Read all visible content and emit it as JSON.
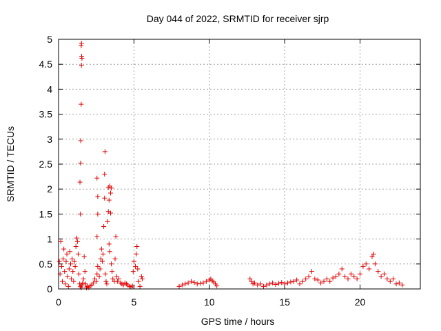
{
  "chart_data": {
    "type": "scatter",
    "title": "Day 044 of 2022, SRMTID for receiver sjrp",
    "xlabel": "GPS time / hours",
    "ylabel": "SRMTID / TECUs",
    "xlim": [
      0,
      24
    ],
    "ylim": [
      0,
      5
    ],
    "xticks": [
      0,
      5,
      10,
      15,
      20
    ],
    "xtick_labels": [
      "0",
      "5",
      "10",
      "15",
      "20"
    ],
    "yticks": [
      0,
      0.5,
      1,
      1.5,
      2,
      2.5,
      3,
      3.5,
      4,
      4.5,
      5
    ],
    "ytick_labels": [
      "0",
      "0.5",
      "1",
      "1.5",
      "2",
      "2.5",
      "3",
      "3.5",
      "4",
      "4.5",
      "5"
    ],
    "grid": true,
    "marker": "plus",
    "marker_color": "#e00000",
    "series": [
      {
        "name": "SRMTID",
        "points": [
          [
            0.05,
            0.55
          ],
          [
            0.1,
            0.3
          ],
          [
            0.15,
            0.95
          ],
          [
            0.2,
            0.45
          ],
          [
            0.25,
            0.15
          ],
          [
            0.3,
            0.6
          ],
          [
            0.35,
            0.8
          ],
          [
            0.4,
            0.35
          ],
          [
            0.45,
            0.1
          ],
          [
            0.5,
            0.55
          ],
          [
            0.55,
            0.7
          ],
          [
            0.6,
            0.25
          ],
          [
            0.65,
            0.05
          ],
          [
            0.7,
            0.4
          ],
          [
            0.75,
            0.75
          ],
          [
            0.8,
            0.5
          ],
          [
            0.85,
            0.2
          ],
          [
            0.9,
            0.6
          ],
          [
            0.95,
            0.35
          ],
          [
            1.0,
            0.15
          ],
          [
            1.05,
            0.55
          ],
          [
            1.1,
            0.45
          ],
          [
            1.15,
            0.85
          ],
          [
            1.2,
            1.02
          ],
          [
            1.25,
            0.95
          ],
          [
            1.3,
            0.7
          ],
          [
            1.35,
            0.3
          ],
          [
            1.4,
            0.1
          ],
          [
            1.45,
            0.05
          ],
          [
            1.5,
            0.02
          ],
          [
            1.55,
            0.08
          ],
          [
            1.6,
            0.12
          ],
          [
            1.65,
            0.2
          ],
          [
            1.7,
            0.65
          ],
          [
            1.75,
            0.35
          ],
          [
            1.8,
            0.1
          ],
          [
            1.45,
            1.5
          ],
          [
            1.42,
            2.14
          ],
          [
            1.46,
            2.52
          ],
          [
            1.47,
            2.97
          ],
          [
            1.5,
            3.7
          ],
          [
            1.52,
            4.48
          ],
          [
            1.55,
            4.62
          ],
          [
            1.53,
            4.66
          ],
          [
            1.5,
            4.87
          ],
          [
            1.52,
            4.92
          ],
          [
            1.85,
            0.02
          ],
          [
            1.9,
            0.05
          ],
          [
            2.0,
            0.03
          ],
          [
            2.1,
            0.06
          ],
          [
            2.2,
            0.08
          ],
          [
            2.3,
            0.12
          ],
          [
            2.4,
            0.2
          ],
          [
            2.5,
            0.15
          ],
          [
            2.55,
            0.3
          ],
          [
            2.6,
            0.45
          ],
          [
            2.55,
            1.05
          ],
          [
            2.6,
            1.5
          ],
          [
            2.6,
            1.85
          ],
          [
            2.55,
            2.22
          ],
          [
            2.7,
            0.25
          ],
          [
            2.75,
            0.4
          ],
          [
            2.8,
            0.6
          ],
          [
            2.85,
            0.8
          ],
          [
            2.9,
            0.55
          ],
          [
            2.95,
            0.7
          ],
          [
            3.0,
            1.25
          ],
          [
            3.05,
            1.82
          ],
          [
            3.05,
            2.3
          ],
          [
            3.08,
            2.75
          ],
          [
            3.1,
            0.3
          ],
          [
            3.15,
            0.15
          ],
          [
            3.2,
            0.1
          ],
          [
            3.25,
            1.35
          ],
          [
            3.3,
            1.55
          ],
          [
            3.35,
            1.78
          ],
          [
            3.3,
            2.03
          ],
          [
            3.4,
            2.06
          ],
          [
            3.45,
            1.92
          ],
          [
            3.5,
            2.02
          ],
          [
            3.45,
            1.52
          ],
          [
            3.35,
            0.9
          ],
          [
            3.4,
            0.75
          ],
          [
            3.5,
            0.5
          ],
          [
            3.55,
            0.35
          ],
          [
            3.6,
            0.2
          ],
          [
            3.7,
            0.15
          ],
          [
            3.75,
            0.6
          ],
          [
            3.8,
            1.05
          ],
          [
            3.85,
            0.25
          ],
          [
            3.9,
            0.15
          ],
          [
            4.0,
            0.2
          ],
          [
            4.1,
            0.12
          ],
          [
            4.2,
            0.1
          ],
          [
            4.3,
            0.08
          ],
          [
            4.4,
            0.12
          ],
          [
            4.5,
            0.1
          ],
          [
            4.6,
            0.08
          ],
          [
            4.7,
            0.05
          ],
          [
            4.8,
            0.04
          ],
          [
            4.9,
            0.06
          ],
          [
            4.95,
            0.35
          ],
          [
            5.0,
            0.55
          ],
          [
            5.1,
            0.45
          ],
          [
            5.15,
            0.7
          ],
          [
            5.2,
            0.85
          ],
          [
            5.25,
            0.4
          ],
          [
            5.3,
            0.15
          ],
          [
            5.4,
            0.05
          ],
          [
            5.5,
            0.25
          ],
          [
            5.55,
            0.2
          ],
          [
            8.0,
            0.05
          ],
          [
            8.2,
            0.08
          ],
          [
            8.4,
            0.1
          ],
          [
            8.6,
            0.12
          ],
          [
            8.8,
            0.15
          ],
          [
            9.0,
            0.13
          ],
          [
            9.2,
            0.1
          ],
          [
            9.4,
            0.11
          ],
          [
            9.6,
            0.12
          ],
          [
            9.8,
            0.15
          ],
          [
            10.0,
            0.18
          ],
          [
            10.1,
            0.2
          ],
          [
            10.2,
            0.16
          ],
          [
            10.3,
            0.14
          ],
          [
            10.4,
            0.1
          ],
          [
            10.5,
            0.06
          ],
          [
            12.7,
            0.2
          ],
          [
            12.8,
            0.15
          ],
          [
            12.9,
            0.1
          ],
          [
            13.0,
            0.12
          ],
          [
            13.2,
            0.08
          ],
          [
            13.4,
            0.1
          ],
          [
            13.6,
            0.05
          ],
          [
            13.8,
            0.08
          ],
          [
            14.0,
            0.1
          ],
          [
            14.2,
            0.12
          ],
          [
            14.4,
            0.09
          ],
          [
            14.6,
            0.11
          ],
          [
            14.8,
            0.13
          ],
          [
            15.0,
            0.1
          ],
          [
            15.2,
            0.12
          ],
          [
            15.4,
            0.14
          ],
          [
            15.6,
            0.15
          ],
          [
            15.8,
            0.18
          ],
          [
            16.0,
            0.1
          ],
          [
            16.2,
            0.15
          ],
          [
            16.4,
            0.2
          ],
          [
            16.6,
            0.25
          ],
          [
            16.8,
            0.35
          ],
          [
            17.0,
            0.2
          ],
          [
            17.2,
            0.18
          ],
          [
            17.4,
            0.12
          ],
          [
            17.6,
            0.15
          ],
          [
            17.8,
            0.2
          ],
          [
            18.0,
            0.15
          ],
          [
            18.2,
            0.22
          ],
          [
            18.4,
            0.25
          ],
          [
            18.6,
            0.3
          ],
          [
            18.8,
            0.4
          ],
          [
            19.0,
            0.25
          ],
          [
            19.2,
            0.2
          ],
          [
            19.4,
            0.3
          ],
          [
            19.6,
            0.25
          ],
          [
            19.8,
            0.2
          ],
          [
            20.0,
            0.3
          ],
          [
            20.2,
            0.45
          ],
          [
            20.4,
            0.5
          ],
          [
            20.6,
            0.4
          ],
          [
            20.8,
            0.65
          ],
          [
            20.9,
            0.7
          ],
          [
            21.0,
            0.5
          ],
          [
            21.2,
            0.35
          ],
          [
            21.4,
            0.25
          ],
          [
            21.6,
            0.3
          ],
          [
            21.8,
            0.2
          ],
          [
            22.0,
            0.15
          ],
          [
            22.2,
            0.2
          ],
          [
            22.4,
            0.1
          ],
          [
            22.6,
            0.12
          ],
          [
            22.8,
            0.08
          ]
        ]
      }
    ]
  }
}
